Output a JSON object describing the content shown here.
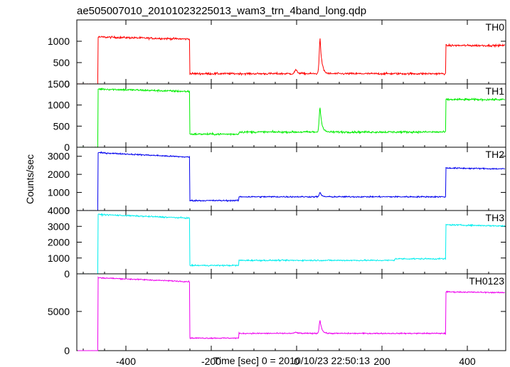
{
  "chart_data": {
    "type": "line",
    "title": "ae505007010_20101023225013_wam3_trn_4band_long.qdp",
    "xlabel": "Time [sec] 0 = 2010/10/23 22:50:13",
    "ylabel": "Counts/sec",
    "xlim": [
      -515,
      490
    ],
    "x_ticks": [
      "-400",
      "-200",
      "0",
      "200",
      "400"
    ],
    "x_tick_values": [
      -400,
      -200,
      0,
      200,
      400
    ],
    "grid": false,
    "panels": [
      {
        "name": "TH0",
        "color": "#ff0000",
        "ylim": [
          0,
          1500
        ],
        "y_ticks": [
          "0",
          "500",
          "1000"
        ],
        "y_tick_values": [
          0,
          500,
          1000
        ],
        "noise": 22,
        "segments": [
          {
            "from": -515,
            "to": -465,
            "level": 0,
            "noise": 3
          },
          {
            "from": -465,
            "to": -250,
            "level": 1100,
            "slope_to": 1050
          },
          {
            "from": -250,
            "to": 350,
            "level": 240
          },
          {
            "from": 350,
            "to": 490,
            "level": 900
          }
        ],
        "bumps": [
          {
            "center": -2,
            "height": 90,
            "width": 5
          },
          {
            "center": 55,
            "height": 820,
            "width": 4
          }
        ]
      },
      {
        "name": "TH1",
        "color": "#00ee00",
        "ylim": [
          0,
          1500
        ],
        "y_ticks": [
          "0",
          "500",
          "1000",
          "1500"
        ],
        "y_tick_values": [
          0,
          500,
          1000,
          1500
        ],
        "noise": 22,
        "segments": [
          {
            "from": -515,
            "to": -465,
            "level": 0,
            "noise": 3
          },
          {
            "from": -465,
            "to": -250,
            "level": 1380,
            "slope_to": 1320
          },
          {
            "from": -250,
            "to": -135,
            "level": 310
          },
          {
            "from": -135,
            "to": 350,
            "level": 360
          },
          {
            "from": 350,
            "to": 490,
            "level": 1130
          }
        ],
        "bumps": [
          {
            "center": 55,
            "height": 600,
            "width": 4
          }
        ]
      },
      {
        "name": "TH2",
        "color": "#0000ee",
        "ylim": [
          0,
          3500
        ],
        "y_ticks": [
          "0",
          "1000",
          "2000",
          "3000"
        ],
        "y_tick_values": [
          0,
          1000,
          2000,
          3000
        ],
        "noise": 35,
        "segments": [
          {
            "from": -515,
            "to": -465,
            "level": 0,
            "noise": 5
          },
          {
            "from": -465,
            "to": -250,
            "level": 3200,
            "slope_to": 2950
          },
          {
            "from": -250,
            "to": -135,
            "level": 550
          },
          {
            "from": -135,
            "to": 350,
            "level": 760
          },
          {
            "from": 350,
            "to": 490,
            "level": 2350,
            "slope_to": 2300
          }
        ],
        "bumps": [
          {
            "center": 55,
            "height": 220,
            "width": 4
          }
        ]
      },
      {
        "name": "TH3",
        "color": "#00eeee",
        "ylim": [
          0,
          4000
        ],
        "y_ticks": [
          "0",
          "1000",
          "2000",
          "3000",
          "4000"
        ],
        "y_tick_values": [
          0,
          1000,
          2000,
          3000,
          4000
        ],
        "noise": 40,
        "segments": [
          {
            "from": -515,
            "to": -465,
            "level": 0,
            "noise": 5
          },
          {
            "from": -465,
            "to": -250,
            "level": 3750,
            "slope_to": 3520
          },
          {
            "from": -250,
            "to": -135,
            "level": 530
          },
          {
            "from": -135,
            "to": 230,
            "level": 850
          },
          {
            "from": 230,
            "to": 350,
            "level": 950
          },
          {
            "from": 350,
            "to": 490,
            "level": 3100,
            "slope_to": 3020
          }
        ],
        "bumps": []
      },
      {
        "name": "TH0123",
        "color": "#ee00ee",
        "ylim": [
          0,
          9800
        ],
        "y_ticks": [
          "0",
          "5000"
        ],
        "y_tick_values": [
          0,
          5000
        ],
        "noise": 70,
        "segments": [
          {
            "from": -515,
            "to": -465,
            "level": 0,
            "noise": 8
          },
          {
            "from": -465,
            "to": -250,
            "level": 9300,
            "slope_to": 8800
          },
          {
            "from": -250,
            "to": -135,
            "level": 1600
          },
          {
            "from": -135,
            "to": 350,
            "level": 2200
          },
          {
            "from": 350,
            "to": 490,
            "level": 7500,
            "slope_to": 7400
          }
        ],
        "bumps": [
          {
            "center": -2,
            "height": 150,
            "width": 5
          },
          {
            "center": 55,
            "height": 1700,
            "width": 4
          }
        ]
      }
    ]
  }
}
